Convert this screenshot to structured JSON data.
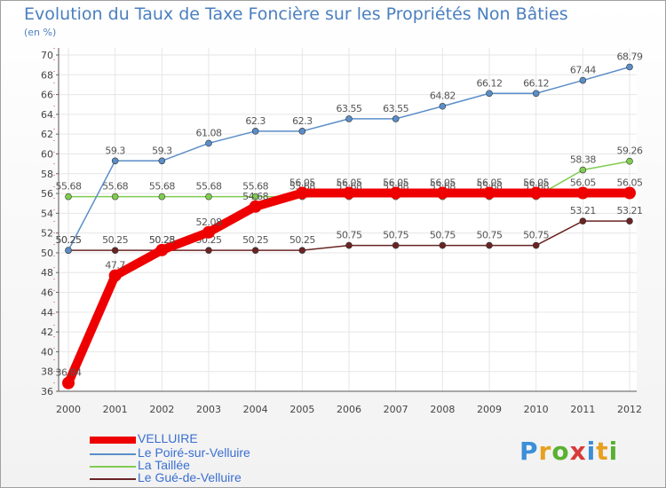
{
  "title": "Evolution du Taux de Taxe Foncière sur les Propriétés Non Bâties",
  "subtitle": "(en %)",
  "logo": {
    "letters": [
      "P",
      "r",
      "o",
      "x",
      "i",
      "t",
      "i"
    ],
    "colors": [
      "#3b8fd8",
      "#e8a020",
      "#5ab030",
      "#d83a3a",
      "#3b8fd8",
      "#e8a020",
      "#5ab030"
    ]
  },
  "chart_data": {
    "type": "line",
    "x": [
      "2000",
      "2001",
      "2002",
      "2003",
      "2004",
      "2005",
      "2006",
      "2007",
      "2008",
      "2009",
      "2010",
      "2011",
      "2012"
    ],
    "ylim": [
      36,
      70
    ],
    "yticks": [
      36,
      38,
      40,
      42,
      44,
      46,
      48,
      50,
      52,
      54,
      56,
      58,
      60,
      62,
      64,
      66,
      68,
      70
    ],
    "xlabel": "",
    "ylabel": "(en %)",
    "grid": true,
    "series": [
      {
        "name": "Le Gué-de-Velluire",
        "color": "#6b2424",
        "values": [
          50.25,
          50.25,
          50.25,
          50.25,
          50.25,
          50.25,
          50.75,
          50.75,
          50.75,
          50.75,
          50.75,
          53.21,
          53.21
        ],
        "labels": [
          "50.25",
          "50.25",
          "50.25",
          "50.25",
          "50.25",
          "50.25",
          "50.75",
          "50.75",
          "50.75",
          "50.75",
          "50.75",
          "53.21",
          "53.21"
        ]
      },
      {
        "name": "La Taillée",
        "color": "#80cc50",
        "values": [
          55.68,
          55.68,
          55.68,
          55.68,
          55.68,
          55.68,
          55.68,
          55.68,
          55.68,
          55.68,
          55.68,
          58.38,
          59.26
        ],
        "labels": [
          "55.68",
          "55.68",
          "55.68",
          "55.68",
          "55.68",
          "55.68",
          "55.68",
          "55.68",
          "55.68",
          "55.68",
          "55.68",
          "58.38",
          "59.26"
        ]
      },
      {
        "name": "Le Poiré-sur-Velluire",
        "color": "#5b8ec8",
        "values": [
          50.25,
          59.3,
          59.3,
          61.08,
          62.3,
          62.3,
          63.55,
          63.55,
          64.82,
          66.12,
          66.12,
          67.44,
          68.79
        ],
        "labels": [
          "50.25",
          "59.3",
          "59.3",
          "61.08",
          "62.3",
          "62.3",
          "63.55",
          "63.55",
          "64.82",
          "66.12",
          "66.12",
          "67.44",
          "68.79"
        ]
      },
      {
        "name": "VELLUIRE",
        "color": "#ee0000",
        "values": [
          36.84,
          47.7,
          50.28,
          52.08,
          54.68,
          56.05,
          56.05,
          56.05,
          56.05,
          56.05,
          56.05,
          56.05,
          56.05
        ],
        "labels": [
          "36.84",
          "47.7",
          "50.28",
          "52.08",
          "54.68",
          "56.05",
          "56.05",
          "56.05",
          "56.05",
          "56.05",
          "56.05",
          "56.05",
          "56.05"
        ]
      }
    ]
  },
  "legend": [
    {
      "name": "VELLUIRE",
      "color": "#ee0000"
    },
    {
      "name": "Le Poiré-sur-Velluire",
      "color": "#5b8ec8"
    },
    {
      "name": "La Taillée",
      "color": "#80cc50"
    },
    {
      "name": "Le Gué-de-Velluire",
      "color": "#6b2424"
    }
  ]
}
